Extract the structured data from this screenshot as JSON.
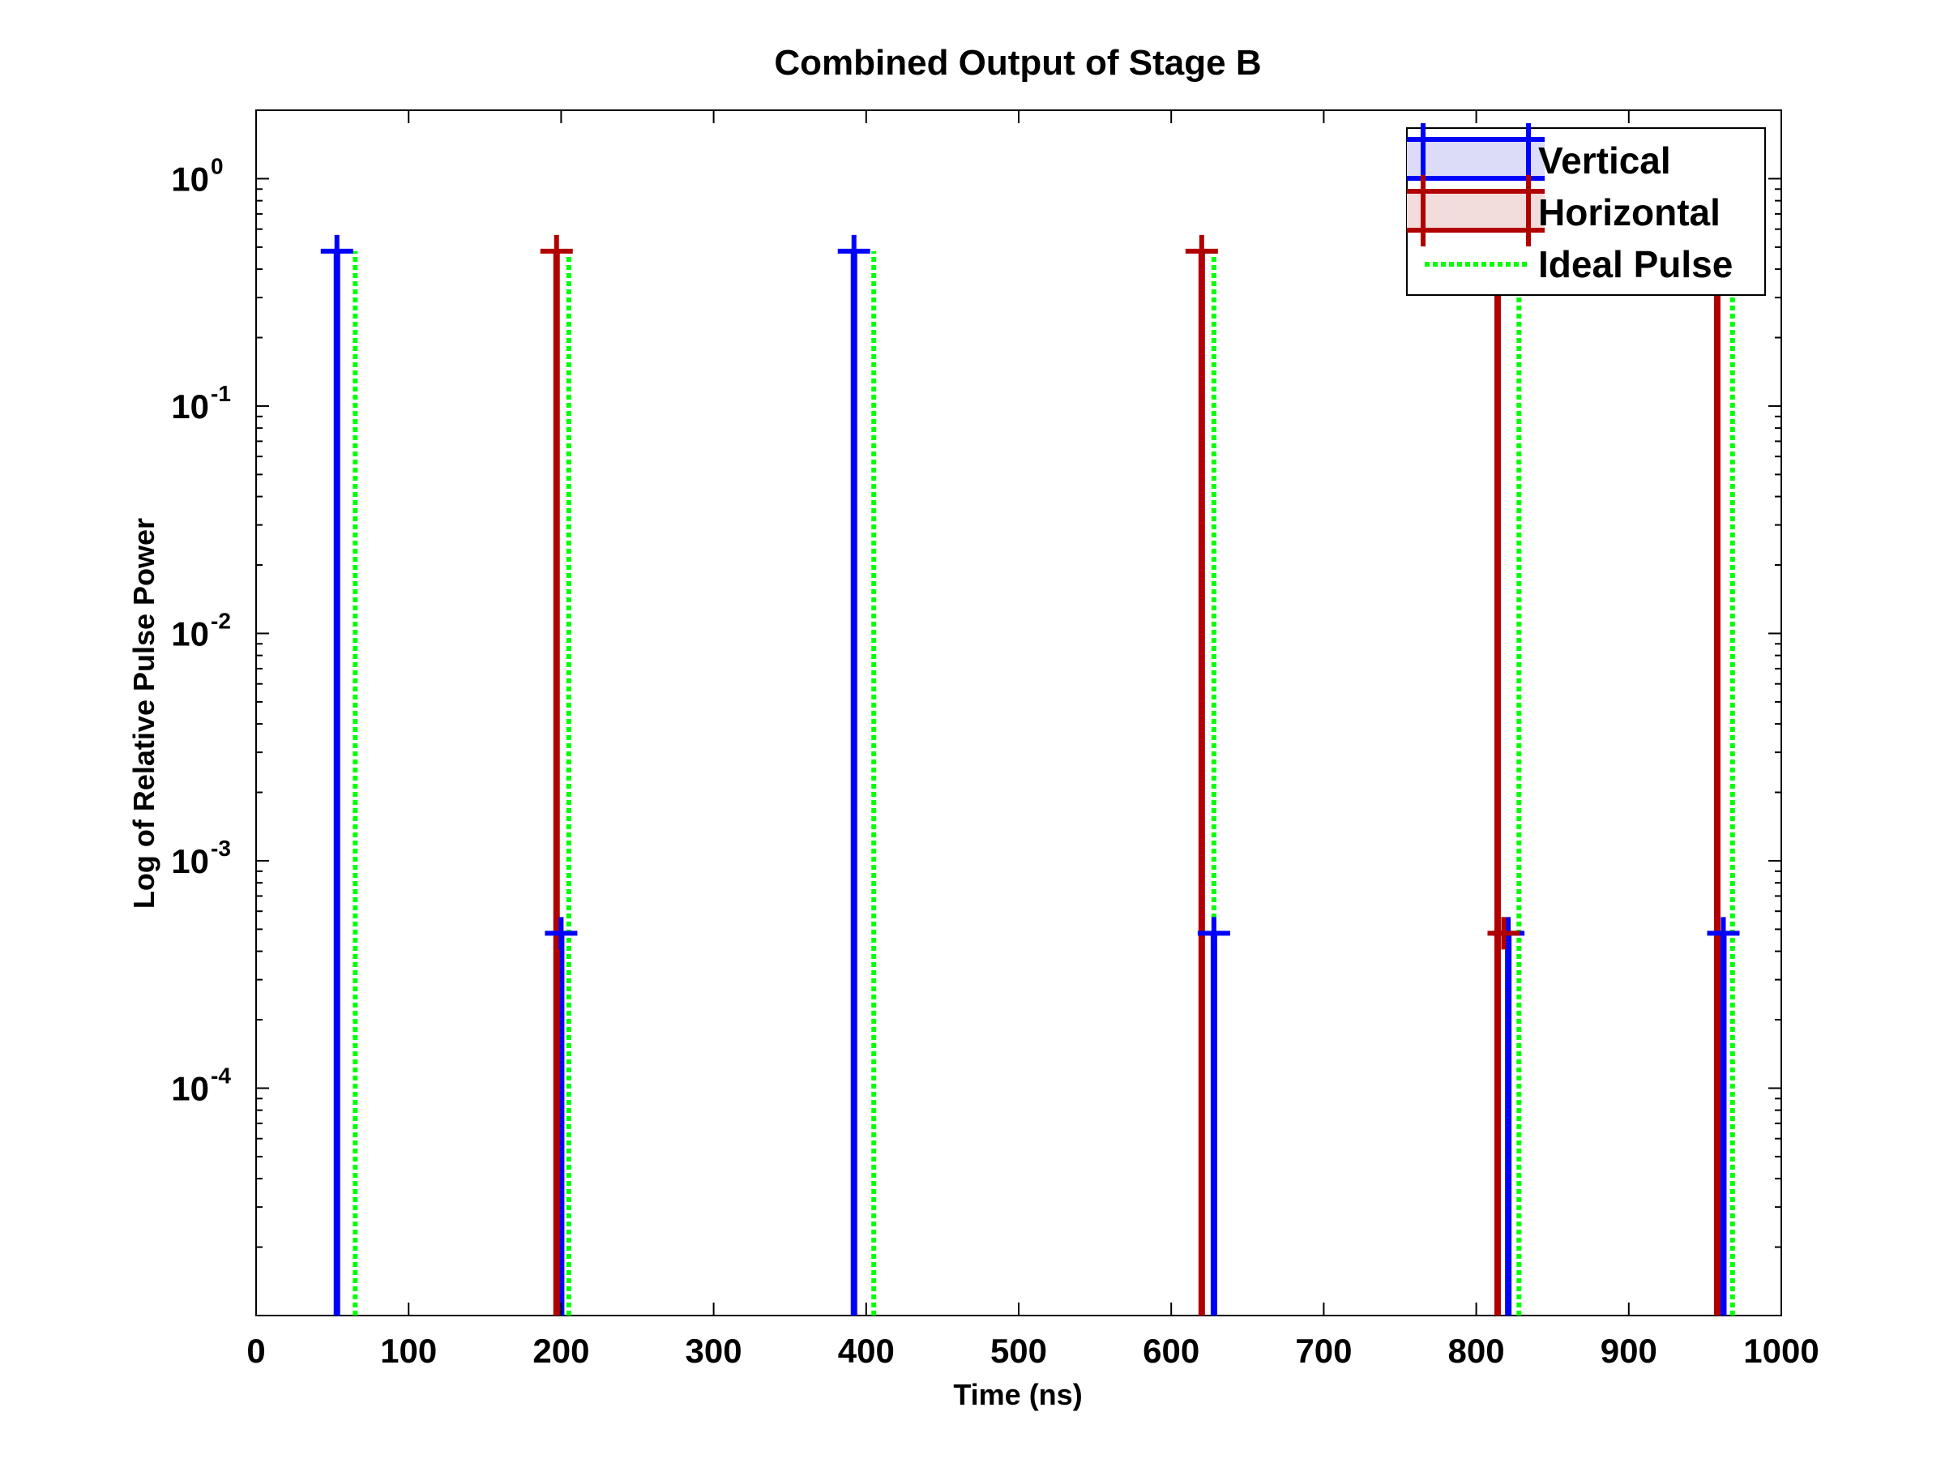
{
  "chart_data": {
    "type": "line",
    "title": "Combined Output of Stage B",
    "xlabel": "Time (ns)",
    "ylabel": "Log of Relative Pulse Power",
    "xlim": [
      0,
      1000
    ],
    "ylim": [
      1e-05,
      2
    ],
    "yscale": "log",
    "xticks": [
      0,
      100,
      200,
      300,
      400,
      500,
      600,
      700,
      800,
      900,
      1000
    ],
    "yticks": [
      {
        "value": 0.0001,
        "base": "10",
        "exp": "-4"
      },
      {
        "value": 0.001,
        "base": "10",
        "exp": "-3"
      },
      {
        "value": 0.01,
        "base": "10",
        "exp": "-2"
      },
      {
        "value": 0.1,
        "base": "10",
        "exp": "-1"
      },
      {
        "value": 1,
        "base": "10",
        "exp": "0"
      }
    ],
    "grid": false,
    "legend_position": "top-right",
    "colors": {
      "vertical": "#0000ff",
      "horizontal": "#b00000",
      "ideal": "#00ff00"
    },
    "series": [
      {
        "name": "Vertical",
        "style": "solid",
        "marker": "plus",
        "pulses": [
          {
            "x": 53,
            "y": 0.48,
            "marker": true
          },
          {
            "x": 200,
            "y": 0.00048,
            "marker": true
          },
          {
            "x": 392,
            "y": 0.48,
            "marker": true
          },
          {
            "x": 628,
            "y": 0.00048,
            "marker": true
          },
          {
            "x": 821,
            "y": 0.00048,
            "marker": true
          },
          {
            "x": 962,
            "y": 0.00048,
            "marker": true
          }
        ]
      },
      {
        "name": "Horizontal",
        "style": "solid",
        "marker": "plus",
        "pulses": [
          {
            "x": 197,
            "y": 0.48,
            "marker": true
          },
          {
            "x": 620,
            "y": 0.48,
            "marker": true
          },
          {
            "x": 814,
            "y": 0.48,
            "marker": false
          },
          {
            "x": 958,
            "y": 0.48,
            "marker": false
          }
        ]
      },
      {
        "name": "Ideal Pulse",
        "style": "dotted",
        "marker": "none",
        "pulses": [
          {
            "x": 65,
            "y": 0.48
          },
          {
            "x": 205,
            "y": 0.48
          },
          {
            "x": 405,
            "y": 0.48
          },
          {
            "x": 628,
            "y": 0.48
          },
          {
            "x": 828,
            "y": 0.48
          },
          {
            "x": 968,
            "y": 0.48
          }
        ]
      }
    ],
    "extra_markers": [
      {
        "series": "Horizontal",
        "x": 818,
        "y": 0.00048
      }
    ]
  }
}
